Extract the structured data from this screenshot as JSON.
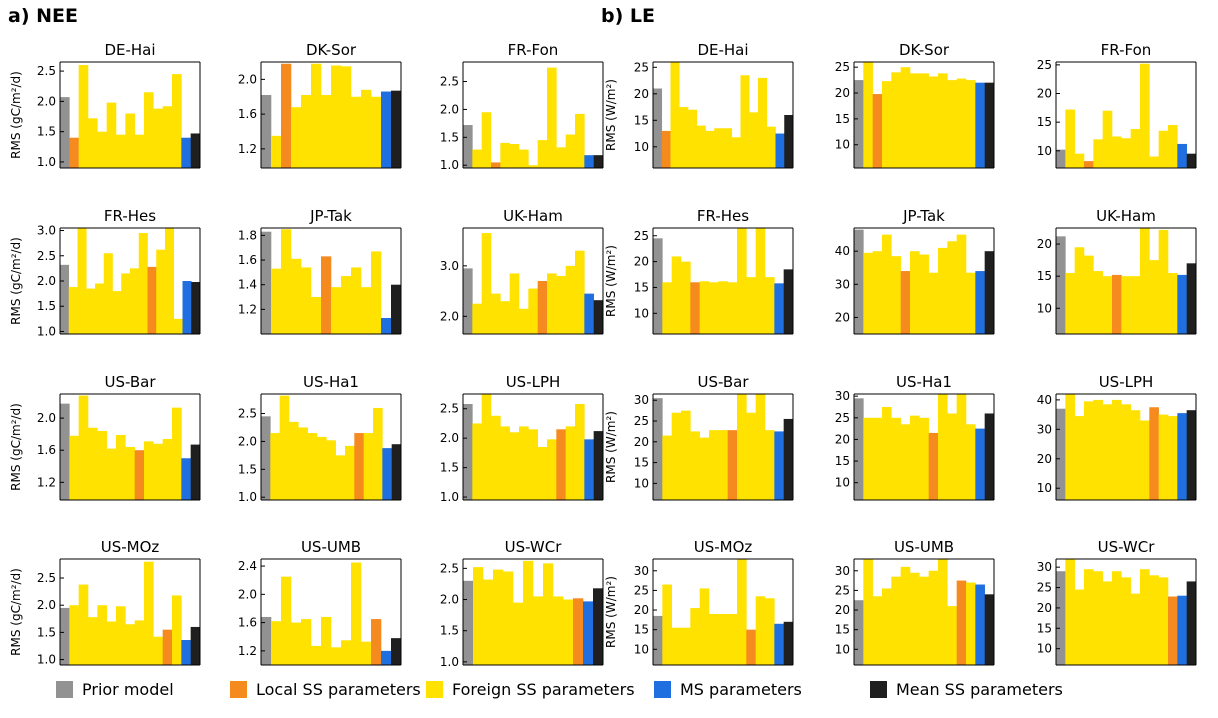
{
  "panels": {
    "a": {
      "label": "a) NEE",
      "ylabel": "RMS (gC/m²/d)"
    },
    "b": {
      "label": "b) LE",
      "ylabel": "RMS (W/m²)"
    }
  },
  "legend": [
    {
      "label": "Prior model",
      "color": "#929292"
    },
    {
      "label": "Local SS parameters",
      "color": "#f58a1f"
    },
    {
      "label": "Foreign SS parameters",
      "color": "#ffe200"
    },
    {
      "label": "MS parameters",
      "color": "#1f6fe0"
    },
    {
      "label": "Mean SS parameters",
      "color": "#1f1f1f"
    }
  ],
  "chart_data": [
    {
      "panel": "a",
      "type": "bar",
      "title": "DE-Hai",
      "ylim": [
        0.9,
        2.65
      ],
      "yticks": [
        "1.0",
        "1.5",
        "2.0",
        "2.5"
      ],
      "values": [
        2.07,
        1.4,
        2.6,
        1.72,
        1.5,
        1.98,
        1.45,
        1.8,
        1.45,
        2.15,
        1.88,
        1.92,
        2.45,
        1.4,
        1.47
      ]
    },
    {
      "panel": "a",
      "type": "bar",
      "title": "DK-Sor",
      "ylim": [
        0.98,
        2.2
      ],
      "yticks": [
        "1.2",
        "1.6",
        "2.0"
      ],
      "values": [
        1.82,
        1.35,
        2.18,
        1.68,
        1.82,
        2.18,
        1.82,
        2.16,
        2.15,
        1.8,
        1.88,
        1.8,
        1.86,
        1.87
      ]
    },
    {
      "panel": "a",
      "type": "bar",
      "title": "FR-Fon",
      "ylim": [
        0.95,
        2.85
      ],
      "yticks": [
        "1.0",
        "1.5",
        "2.0",
        "2.5"
      ],
      "values": [
        1.72,
        1.28,
        1.95,
        1.05,
        1.4,
        1.38,
        1.28,
        1.0,
        1.45,
        2.75,
        1.32,
        1.55,
        1.92,
        1.18,
        1.18
      ]
    },
    {
      "panel": "a",
      "type": "bar",
      "title": "FR-Hes",
      "ylim": [
        0.95,
        3.05
      ],
      "yticks": [
        "1.0",
        "1.5",
        "2.0",
        "2.5",
        "3.0"
      ],
      "values": [
        2.32,
        1.88,
        3.05,
        1.85,
        1.95,
        2.55,
        1.8,
        2.15,
        2.25,
        2.95,
        2.28,
        2.62,
        3.05,
        1.25,
        2.0,
        1.98
      ]
    },
    {
      "panel": "a",
      "type": "bar",
      "title": "JP-Tak",
      "ylim": [
        1.0,
        1.86
      ],
      "yticks": [
        "1.2",
        "1.4",
        "1.6",
        "1.8"
      ],
      "values": [
        1.83,
        1.53,
        1.85,
        1.61,
        1.54,
        1.3,
        1.63,
        1.38,
        1.47,
        1.54,
        1.38,
        1.67,
        1.13,
        1.4
      ]
    },
    {
      "panel": "a",
      "type": "bar",
      "title": "UK-Ham",
      "ylim": [
        1.65,
        3.75
      ],
      "yticks": [
        "2.0",
        "3.0"
      ],
      "values": [
        2.95,
        2.25,
        3.65,
        2.45,
        2.3,
        2.85,
        2.15,
        2.55,
        2.7,
        2.85,
        2.8,
        3.0,
        3.3,
        2.45,
        2.32
      ]
    },
    {
      "panel": "a",
      "type": "bar",
      "title": "US-Bar",
      "ylim": [
        0.98,
        2.3
      ],
      "yticks": [
        "1.2",
        "1.6",
        "2.0"
      ],
      "values": [
        2.18,
        1.78,
        2.28,
        1.88,
        1.84,
        1.62,
        1.79,
        1.64,
        1.6,
        1.71,
        1.68,
        1.74,
        2.13,
        1.5,
        1.67
      ]
    },
    {
      "panel": "a",
      "type": "bar",
      "title": "US-Ha1",
      "ylim": [
        0.95,
        2.85
      ],
      "yticks": [
        "1.0",
        "1.5",
        "2.0",
        "2.5"
      ],
      "values": [
        2.45,
        2.15,
        2.82,
        2.35,
        2.25,
        2.15,
        2.08,
        2.02,
        1.75,
        1.92,
        2.15,
        2.15,
        2.6,
        1.88,
        1.95
      ]
    },
    {
      "panel": "a",
      "type": "bar",
      "title": "US-LPH",
      "ylim": [
        0.95,
        2.75
      ],
      "yticks": [
        "1.0",
        "1.5",
        "2.0",
        "2.5"
      ],
      "values": [
        2.58,
        2.25,
        2.75,
        2.38,
        2.2,
        2.1,
        2.2,
        2.15,
        1.85,
        1.98,
        2.15,
        2.2,
        2.58,
        1.98,
        2.12
      ]
    },
    {
      "panel": "a",
      "type": "bar",
      "title": "US-MOz",
      "ylim": [
        0.9,
        2.85
      ],
      "yticks": [
        "1.0",
        "1.5",
        "2.0",
        "2.5"
      ],
      "values": [
        1.95,
        2.0,
        2.38,
        1.78,
        2.0,
        1.7,
        1.98,
        1.65,
        1.72,
        2.8,
        1.42,
        1.55,
        2.18,
        1.36,
        1.6
      ]
    },
    {
      "panel": "a",
      "type": "bar",
      "title": "US-UMB",
      "ylim": [
        1.0,
        2.5
      ],
      "yticks": [
        "1.2",
        "1.6",
        "2.0",
        "2.4"
      ],
      "values": [
        1.68,
        1.62,
        2.25,
        1.6,
        1.65,
        1.27,
        1.68,
        1.25,
        1.35,
        2.45,
        1.33,
        1.65,
        1.2,
        1.38
      ]
    },
    {
      "panel": "a",
      "type": "bar",
      "title": "US-WCr",
      "ylim": [
        0.95,
        2.65
      ],
      "yticks": [
        "1.0",
        "1.5",
        "2.0",
        "2.5"
      ],
      "values": [
        2.3,
        2.52,
        2.32,
        2.48,
        2.45,
        1.95,
        2.62,
        2.05,
        2.58,
        2.05,
        2.0,
        2.02,
        1.97,
        2.18
      ]
    },
    {
      "panel": "b",
      "type": "bar",
      "title": "DE-Hai",
      "ylim": [
        6,
        26
      ],
      "yticks": [
        "10",
        "15",
        "20",
        "25"
      ],
      "values": [
        21.0,
        13.0,
        26.0,
        17.5,
        17.0,
        14.0,
        13.0,
        13.5,
        13.5,
        11.8,
        23.5,
        16.5,
        23.0,
        13.8,
        12.5,
        16.0
      ]
    },
    {
      "panel": "b",
      "type": "bar",
      "title": "DK-Sor",
      "ylim": [
        5.5,
        26
      ],
      "yticks": [
        "10",
        "15",
        "20",
        "25"
      ],
      "values": [
        22.5,
        26.0,
        19.8,
        22.3,
        24.0,
        25.0,
        23.8,
        23.8,
        23.2,
        23.8,
        22.5,
        22.8,
        22.5,
        22.0,
        22.0
      ]
    },
    {
      "panel": "b",
      "type": "bar",
      "title": "FR-Fon",
      "ylim": [
        7,
        25.5
      ],
      "yticks": [
        "10",
        "15",
        "20",
        "25"
      ],
      "values": [
        10.2,
        17.2,
        9.5,
        8.2,
        12.0,
        17.0,
        12.5,
        12.2,
        13.8,
        25.2,
        9.0,
        13.5,
        14.5,
        11.2,
        9.5
      ]
    },
    {
      "panel": "b",
      "type": "bar",
      "title": "FR-Hes",
      "ylim": [
        6,
        26.5
      ],
      "yticks": [
        "10",
        "15",
        "20",
        "25"
      ],
      "values": [
        24.5,
        16.0,
        21.0,
        20.0,
        16.0,
        16.2,
        16.0,
        16.2,
        16.0,
        26.5,
        17.0,
        26.5,
        17.0,
        15.8,
        18.5
      ]
    },
    {
      "panel": "b",
      "type": "bar",
      "title": "JP-Tak",
      "ylim": [
        15,
        47
      ],
      "yticks": [
        "20",
        "30",
        "40"
      ],
      "values": [
        46.5,
        39.5,
        40.0,
        45.0,
        38.5,
        34.0,
        40.0,
        39.0,
        33.5,
        41.0,
        43.0,
        45.0,
        33.5,
        34.0,
        40.0
      ]
    },
    {
      "panel": "b",
      "type": "bar",
      "title": "UK-Ham",
      "ylim": [
        6,
        22.5
      ],
      "yticks": [
        "10",
        "15",
        "20"
      ],
      "values": [
        21.2,
        15.5,
        19.5,
        18.2,
        15.8,
        15.0,
        15.2,
        15.0,
        15.0,
        22.8,
        17.5,
        22.2,
        15.5,
        15.2,
        17.0
      ]
    },
    {
      "panel": "b",
      "type": "bar",
      "title": "US-Bar",
      "ylim": [
        6,
        31.5
      ],
      "yticks": [
        "10",
        "15",
        "20",
        "25",
        "30"
      ],
      "values": [
        30.5,
        21.5,
        27.0,
        27.5,
        22.5,
        21.0,
        22.8,
        22.8,
        22.8,
        31.5,
        27.0,
        31.5,
        22.8,
        22.5,
        25.5
      ]
    },
    {
      "panel": "b",
      "type": "bar",
      "title": "US-Ha1",
      "ylim": [
        6,
        30.5
      ],
      "yticks": [
        "10",
        "15",
        "20",
        "25",
        "30"
      ],
      "values": [
        29.5,
        25.0,
        25.0,
        27.5,
        25.0,
        23.5,
        25.5,
        25.0,
        21.5,
        30.5,
        26.0,
        30.5,
        23.5,
        22.5,
        26.0
      ]
    },
    {
      "panel": "b",
      "type": "bar",
      "title": "US-LPH",
      "ylim": [
        6,
        42
      ],
      "yticks": [
        "10",
        "20",
        "30",
        "40"
      ],
      "values": [
        37.0,
        42.0,
        34.5,
        39.5,
        40.0,
        38.5,
        40.0,
        38.5,
        36.5,
        33.0,
        37.5,
        35.0,
        34.5,
        35.5,
        36.5
      ]
    },
    {
      "panel": "b",
      "type": "bar",
      "title": "US-MOz",
      "ylim": [
        6,
        33
      ],
      "yticks": [
        "10",
        "15",
        "20",
        "25",
        "30"
      ],
      "values": [
        18.5,
        26.5,
        15.5,
        15.5,
        20.5,
        25.5,
        19.0,
        19.0,
        19.0,
        33.0,
        15.0,
        23.5,
        23.0,
        16.5,
        17.0
      ]
    },
    {
      "panel": "b",
      "type": "bar",
      "title": "US-UMB",
      "ylim": [
        6,
        33
      ],
      "yticks": [
        "10",
        "15",
        "20",
        "25",
        "30"
      ],
      "values": [
        22.5,
        33.0,
        23.5,
        25.5,
        28.5,
        31.0,
        29.5,
        28.5,
        30.0,
        33.0,
        21.0,
        27.5,
        27.0,
        26.5,
        24.0
      ]
    },
    {
      "panel": "b",
      "type": "bar",
      "title": "US-WCr",
      "ylim": [
        6,
        32
      ],
      "yticks": [
        "10",
        "15",
        "20",
        "25",
        "30"
      ],
      "values": [
        29.0,
        32.0,
        24.5,
        29.5,
        29.0,
        26.5,
        29.0,
        27.5,
        23.5,
        29.5,
        28.0,
        27.5,
        22.8,
        23.0,
        26.5
      ]
    }
  ]
}
